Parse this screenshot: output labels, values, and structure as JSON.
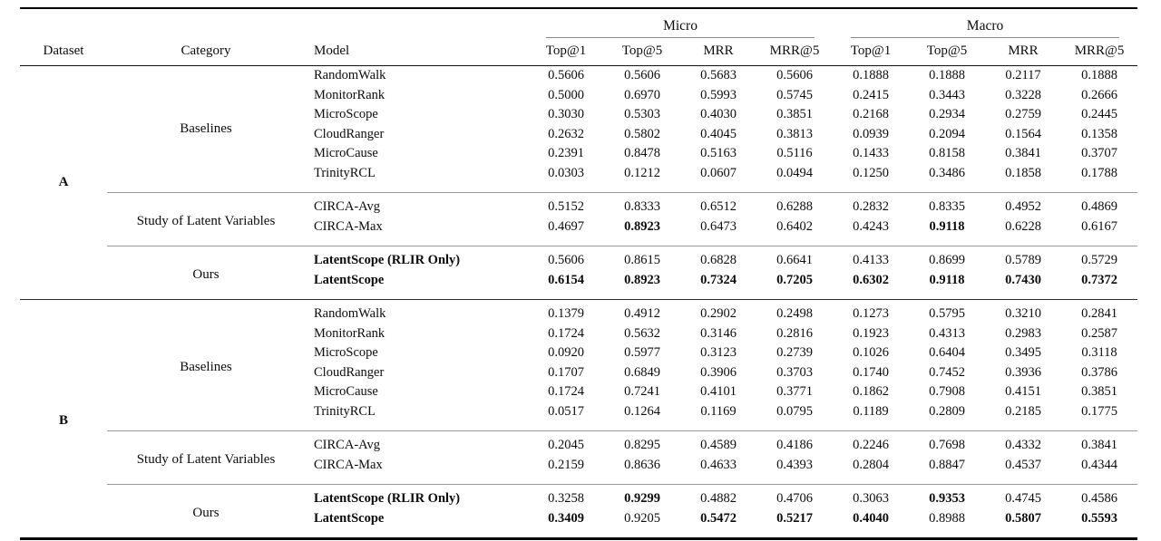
{
  "colors": {
    "rule_heavy": "#000000",
    "rule_medium": "#222222",
    "rule_light": "#8c8c8c",
    "text": "#0c0c0c",
    "background": "#ffffff"
  },
  "table": {
    "header": {
      "dataset": "Dataset",
      "category": "Category",
      "model": "Model",
      "groups": [
        {
          "label": "Micro",
          "metrics": [
            "Top@1",
            "Top@5",
            "MRR",
            "MRR@5"
          ]
        },
        {
          "label": "Macro",
          "metrics": [
            "Top@1",
            "Top@5",
            "MRR",
            "MRR@5"
          ]
        }
      ]
    },
    "datasets": [
      {
        "label": "A",
        "sections": [
          {
            "category": "Baselines",
            "rows": [
              {
                "model": "RandomWalk",
                "model_bold": false,
                "values": [
                  "0.5606",
                  "0.5606",
                  "0.5683",
                  "0.5606",
                  "0.1888",
                  "0.1888",
                  "0.2117",
                  "0.1888"
                ],
                "bold": [
                  false,
                  false,
                  false,
                  false,
                  false,
                  false,
                  false,
                  false
                ]
              },
              {
                "model": "MonitorRank",
                "model_bold": false,
                "values": [
                  "0.5000",
                  "0.6970",
                  "0.5993",
                  "0.5745",
                  "0.2415",
                  "0.3443",
                  "0.3228",
                  "0.2666"
                ],
                "bold": [
                  false,
                  false,
                  false,
                  false,
                  false,
                  false,
                  false,
                  false
                ]
              },
              {
                "model": "MicroScope",
                "model_bold": false,
                "values": [
                  "0.3030",
                  "0.5303",
                  "0.4030",
                  "0.3851",
                  "0.2168",
                  "0.2934",
                  "0.2759",
                  "0.2445"
                ],
                "bold": [
                  false,
                  false,
                  false,
                  false,
                  false,
                  false,
                  false,
                  false
                ]
              },
              {
                "model": "CloudRanger",
                "model_bold": false,
                "values": [
                  "0.2632",
                  "0.5802",
                  "0.4045",
                  "0.3813",
                  "0.0939",
                  "0.2094",
                  "0.1564",
                  "0.1358"
                ],
                "bold": [
                  false,
                  false,
                  false,
                  false,
                  false,
                  false,
                  false,
                  false
                ]
              },
              {
                "model": "MicroCause",
                "model_bold": false,
                "values": [
                  "0.2391",
                  "0.8478",
                  "0.5163",
                  "0.5116",
                  "0.1433",
                  "0.8158",
                  "0.3841",
                  "0.3707"
                ],
                "bold": [
                  false,
                  false,
                  false,
                  false,
                  false,
                  false,
                  false,
                  false
                ]
              },
              {
                "model": "TrinityRCL",
                "model_bold": false,
                "values": [
                  "0.0303",
                  "0.1212",
                  "0.0607",
                  "0.0494",
                  "0.1250",
                  "0.3486",
                  "0.1858",
                  "0.1788"
                ],
                "bold": [
                  false,
                  false,
                  false,
                  false,
                  false,
                  false,
                  false,
                  false
                ]
              }
            ]
          },
          {
            "category": "Study of Latent Variables",
            "rows": [
              {
                "model": "CIRCA-Avg",
                "model_bold": false,
                "values": [
                  "0.5152",
                  "0.8333",
                  "0.6512",
                  "0.6288",
                  "0.2832",
                  "0.8335",
                  "0.4952",
                  "0.4869"
                ],
                "bold": [
                  false,
                  false,
                  false,
                  false,
                  false,
                  false,
                  false,
                  false
                ]
              },
              {
                "model": "CIRCA-Max",
                "model_bold": false,
                "values": [
                  "0.4697",
                  "0.8923",
                  "0.6473",
                  "0.6402",
                  "0.4243",
                  "0.9118",
                  "0.6228",
                  "0.6167"
                ],
                "bold": [
                  false,
                  true,
                  false,
                  false,
                  false,
                  true,
                  false,
                  false
                ]
              }
            ]
          },
          {
            "category": "Ours",
            "rows": [
              {
                "model": "LatentScope (RLIR Only)",
                "model_bold": true,
                "values": [
                  "0.5606",
                  "0.8615",
                  "0.6828",
                  "0.6641",
                  "0.4133",
                  "0.8699",
                  "0.5789",
                  "0.5729"
                ],
                "bold": [
                  false,
                  false,
                  false,
                  false,
                  false,
                  false,
                  false,
                  false
                ]
              },
              {
                "model": "LatentScope",
                "model_bold": true,
                "values": [
                  "0.6154",
                  "0.8923",
                  "0.7324",
                  "0.7205",
                  "0.6302",
                  "0.9118",
                  "0.7430",
                  "0.7372"
                ],
                "bold": [
                  true,
                  true,
                  true,
                  true,
                  true,
                  true,
                  true,
                  true
                ]
              }
            ]
          }
        ]
      },
      {
        "label": "B",
        "sections": [
          {
            "category": "Baselines",
            "rows": [
              {
                "model": "RandomWalk",
                "model_bold": false,
                "values": [
                  "0.1379",
                  "0.4912",
                  "0.2902",
                  "0.2498",
                  "0.1273",
                  "0.5795",
                  "0.3210",
                  "0.2841"
                ],
                "bold": [
                  false,
                  false,
                  false,
                  false,
                  false,
                  false,
                  false,
                  false
                ]
              },
              {
                "model": "MonitorRank",
                "model_bold": false,
                "values": [
                  "0.1724",
                  "0.5632",
                  "0.3146",
                  "0.2816",
                  "0.1923",
                  "0.4313",
                  "0.2983",
                  "0.2587"
                ],
                "bold": [
                  false,
                  false,
                  false,
                  false,
                  false,
                  false,
                  false,
                  false
                ]
              },
              {
                "model": "MicroScope",
                "model_bold": false,
                "values": [
                  "0.0920",
                  "0.5977",
                  "0.3123",
                  "0.2739",
                  "0.1026",
                  "0.6404",
                  "0.3495",
                  "0.3118"
                ],
                "bold": [
                  false,
                  false,
                  false,
                  false,
                  false,
                  false,
                  false,
                  false
                ]
              },
              {
                "model": "CloudRanger",
                "model_bold": false,
                "values": [
                  "0.1707",
                  "0.6849",
                  "0.3906",
                  "0.3703",
                  "0.1740",
                  "0.7452",
                  "0.3936",
                  "0.3786"
                ],
                "bold": [
                  false,
                  false,
                  false,
                  false,
                  false,
                  false,
                  false,
                  false
                ]
              },
              {
                "model": "MicroCause",
                "model_bold": false,
                "values": [
                  "0.1724",
                  "0.7241",
                  "0.4101",
                  "0.3771",
                  "0.1862",
                  "0.7908",
                  "0.4151",
                  "0.3851"
                ],
                "bold": [
                  false,
                  false,
                  false,
                  false,
                  false,
                  false,
                  false,
                  false
                ]
              },
              {
                "model": "TrinityRCL",
                "model_bold": false,
                "values": [
                  "0.0517",
                  "0.1264",
                  "0.1169",
                  "0.0795",
                  "0.1189",
                  "0.2809",
                  "0.2185",
                  "0.1775"
                ],
                "bold": [
                  false,
                  false,
                  false,
                  false,
                  false,
                  false,
                  false,
                  false
                ]
              }
            ]
          },
          {
            "category": "Study of Latent Variables",
            "rows": [
              {
                "model": "CIRCA-Avg",
                "model_bold": false,
                "values": [
                  "0.2045",
                  "0.8295",
                  "0.4589",
                  "0.4186",
                  "0.2246",
                  "0.7698",
                  "0.4332",
                  "0.3841"
                ],
                "bold": [
                  false,
                  false,
                  false,
                  false,
                  false,
                  false,
                  false,
                  false
                ]
              },
              {
                "model": "CIRCA-Max",
                "model_bold": false,
                "values": [
                  "0.2159",
                  "0.8636",
                  "0.4633",
                  "0.4393",
                  "0.2804",
                  "0.8847",
                  "0.4537",
                  "0.4344"
                ],
                "bold": [
                  false,
                  false,
                  false,
                  false,
                  false,
                  false,
                  false,
                  false
                ]
              }
            ]
          },
          {
            "category": "Ours",
            "rows": [
              {
                "model": "LatentScope (RLIR Only)",
                "model_bold": true,
                "values": [
                  "0.3258",
                  "0.9299",
                  "0.4882",
                  "0.4706",
                  "0.3063",
                  "0.9353",
                  "0.4745",
                  "0.4586"
                ],
                "bold": [
                  false,
                  true,
                  false,
                  false,
                  false,
                  true,
                  false,
                  false
                ]
              },
              {
                "model": "LatentScope",
                "model_bold": true,
                "values": [
                  "0.3409",
                  "0.9205",
                  "0.5472",
                  "0.5217",
                  "0.4040",
                  "0.8988",
                  "0.5807",
                  "0.5593"
                ],
                "bold": [
                  true,
                  false,
                  true,
                  true,
                  true,
                  false,
                  true,
                  true
                ]
              }
            ]
          }
        ]
      }
    ]
  }
}
